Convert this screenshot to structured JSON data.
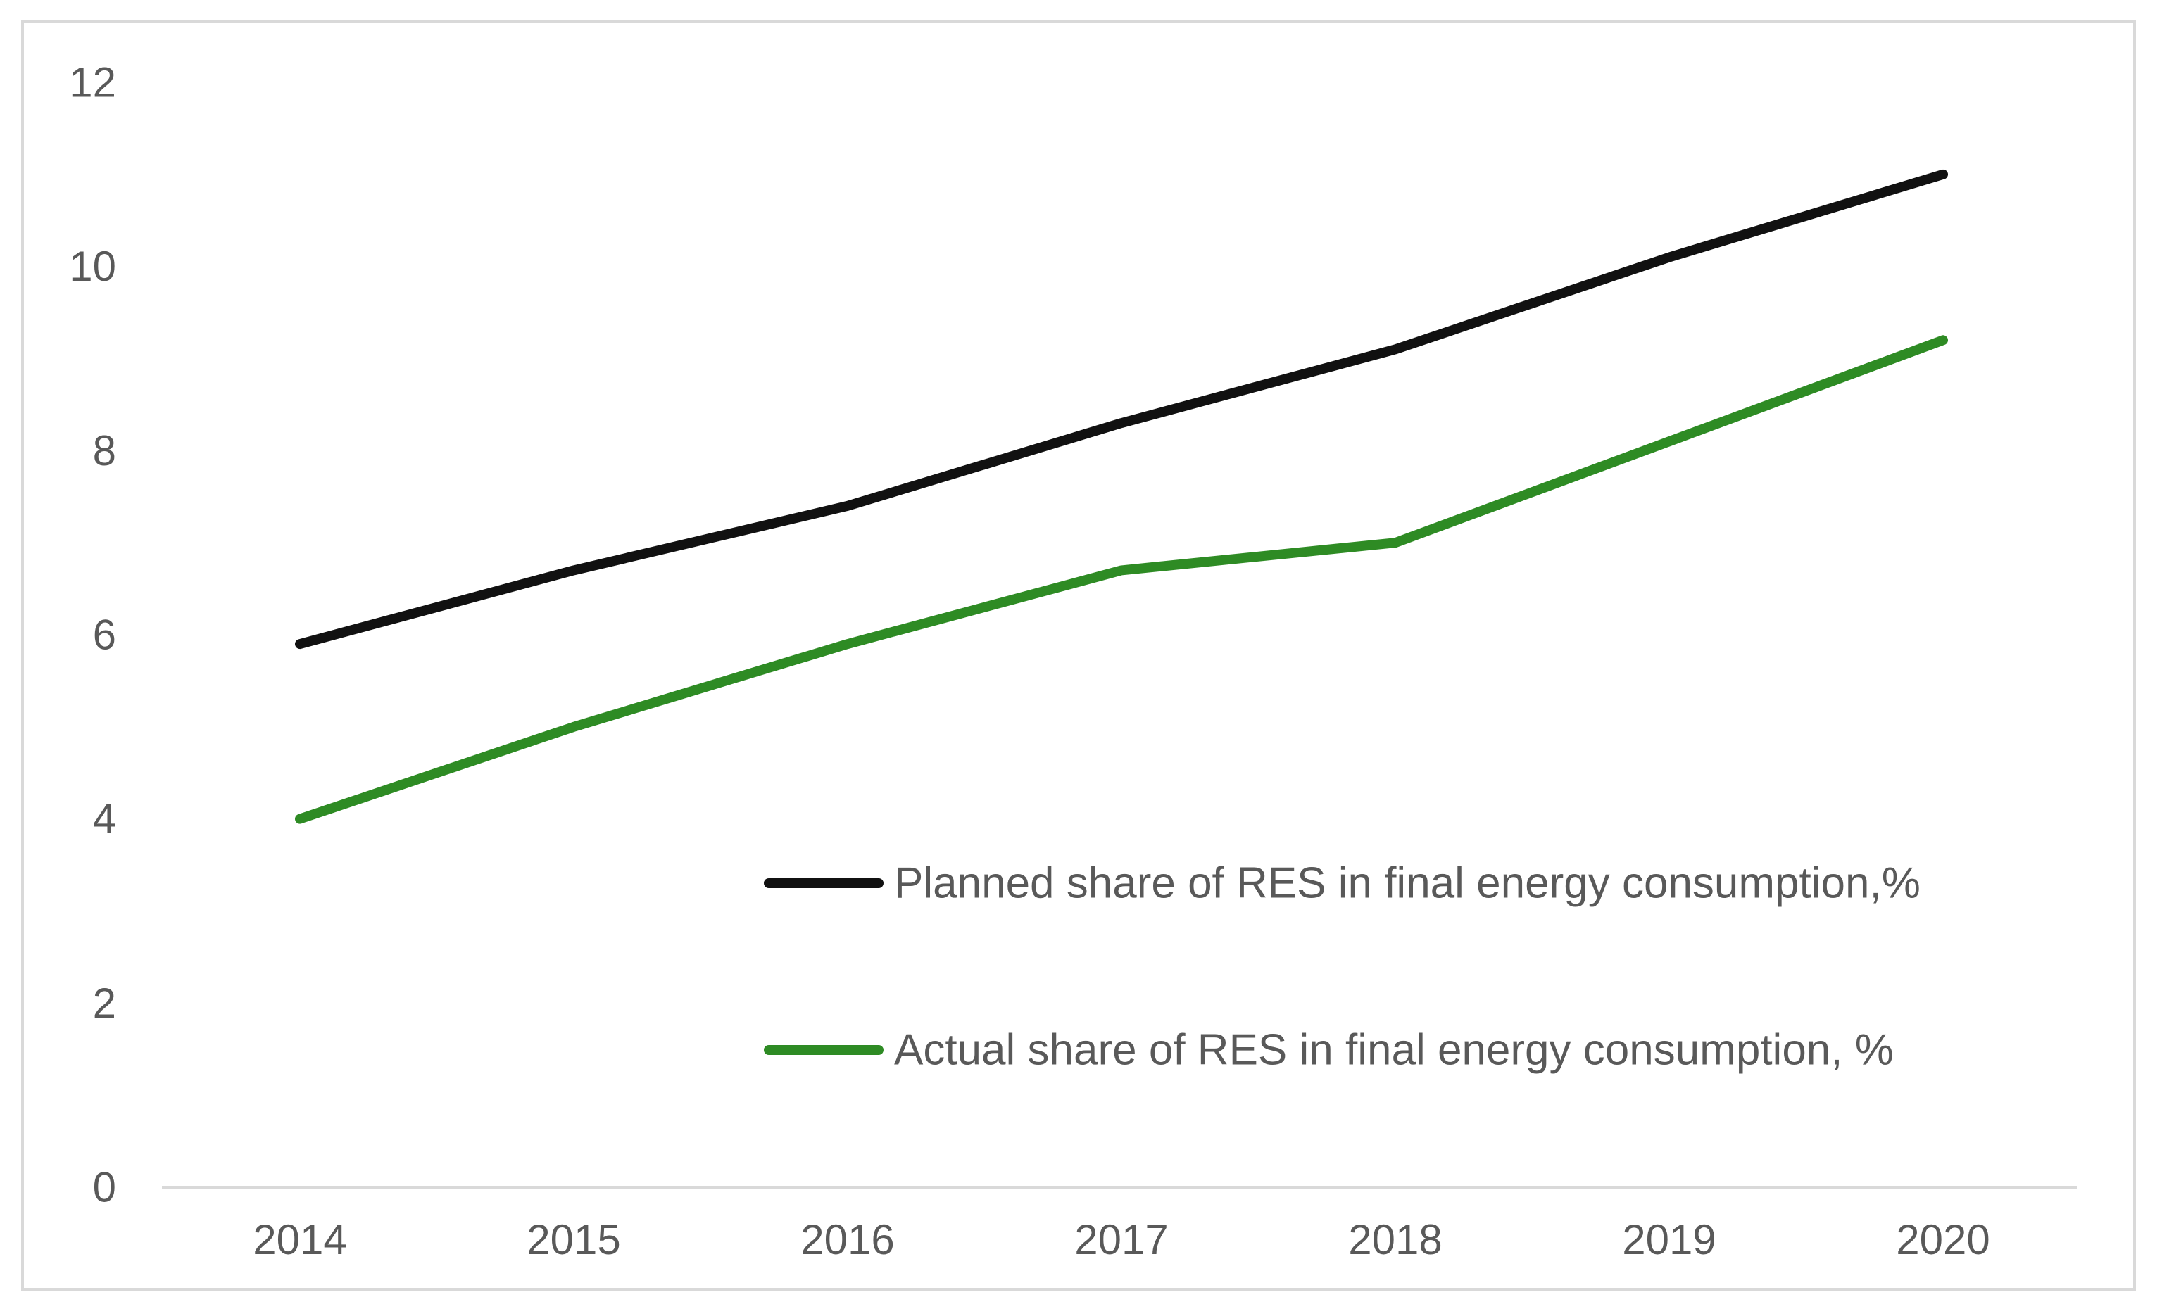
{
  "chart_data": {
    "type": "line",
    "title": "",
    "xlabel": "",
    "ylabel": "",
    "categories": [
      "2014",
      "2015",
      "2016",
      "2017",
      "2018",
      "2019",
      "2020"
    ],
    "series": [
      {
        "name": "Planned share of RES in final energy consumption,%",
        "color": "#111111",
        "values": [
          5.9,
          6.7,
          7.4,
          8.3,
          9.1,
          10.1,
          11.0
        ]
      },
      {
        "name": "Actual share of RES in final energy consumption, %",
        "color": "#2e8b24",
        "values": [
          4.0,
          5.0,
          5.9,
          6.7,
          7.0,
          8.1,
          9.2
        ]
      }
    ],
    "ylim": [
      0,
      12
    ],
    "yticks": [
      0,
      2,
      4,
      6,
      8,
      10,
      12
    ],
    "grid": false,
    "legend_position": "bottom-right inside plot"
  }
}
